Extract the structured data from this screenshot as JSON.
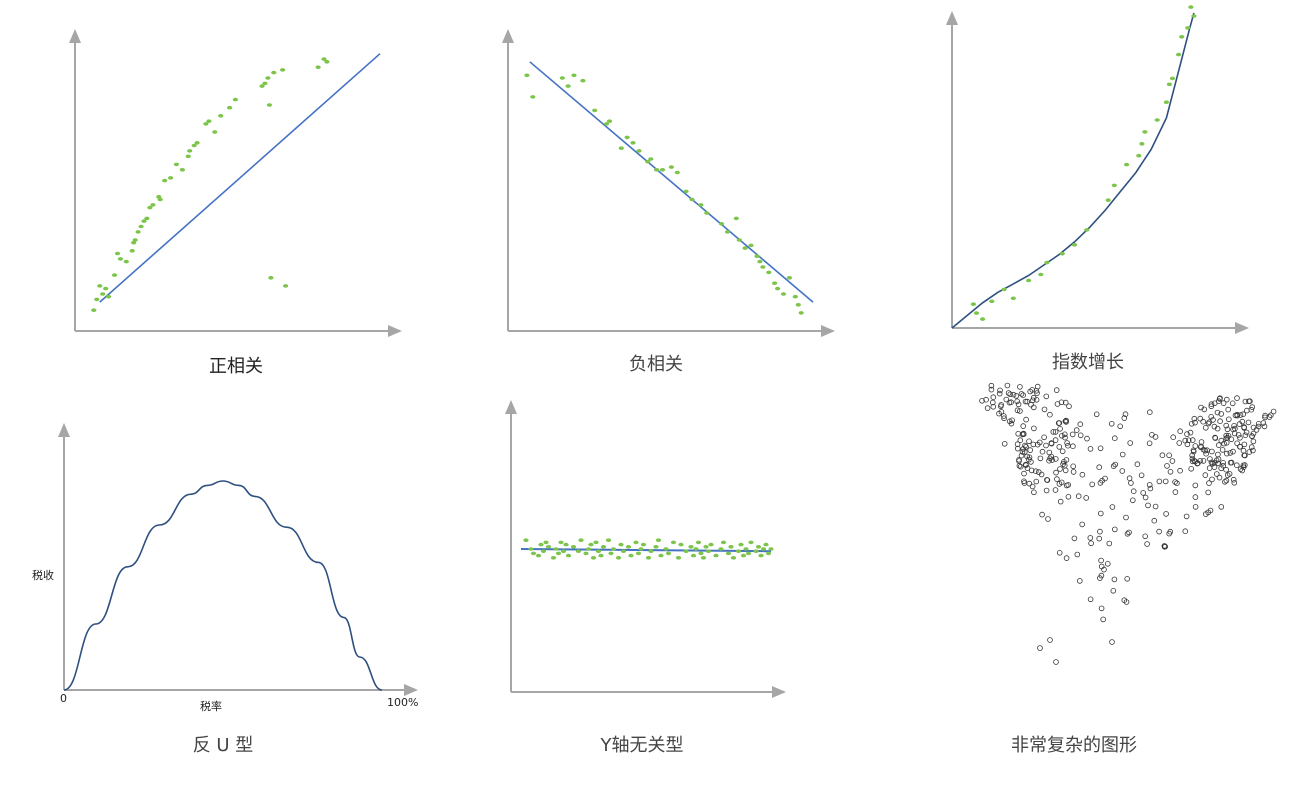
{
  "colors": {
    "axis": "#a6a6a6",
    "fit_line": "#4472c4",
    "curve": "#2e5080",
    "point_green": "#7cc44a",
    "point_open": "#333333"
  },
  "chart_data": [
    {
      "type": "scatter",
      "title": "正相关",
      "fit_line": {
        "x": [
          5,
          100
        ],
        "y": [
          7,
          99
        ]
      },
      "series": [
        {
          "x": [
            3,
            4,
            5,
            6,
            7,
            8,
            10,
            11,
            12,
            14,
            16,
            16.5,
            17,
            18,
            19,
            20,
            21,
            22,
            23,
            25,
            25.5,
            27,
            29,
            31,
            33,
            35,
            35.5,
            37,
            38,
            41,
            42,
            44,
            46,
            49,
            51,
            60,
            61,
            62,
            62.5,
            64,
            67,
            79,
            81,
            82,
            63,
            68
          ],
          "y": [
            4,
            8,
            13,
            10,
            12,
            9,
            17,
            25,
            23,
            22,
            26,
            29,
            30,
            33,
            35,
            37,
            38,
            42,
            43,
            46,
            45,
            52,
            53,
            58,
            56,
            61,
            63,
            65,
            66,
            73,
            74,
            70,
            76,
            79,
            82,
            87,
            88,
            90,
            80,
            92,
            93,
            94,
            97,
            96,
            16,
            13
          ]
        }
      ]
    },
    {
      "type": "scatter",
      "title": "负相关",
      "fit_line": {
        "x": [
          4,
          100
        ],
        "y": [
          96,
          7
        ]
      },
      "series": [
        {
          "x": [
            3,
            5,
            15,
            17,
            19,
            22,
            26,
            30,
            31,
            35,
            37,
            39,
            41,
            44,
            45,
            47,
            49,
            52,
            54,
            57,
            59,
            62,
            64,
            69,
            71,
            74,
            75,
            77,
            79,
            81,
            82,
            83,
            85,
            87,
            88,
            90,
            92,
            94,
            95,
            96
          ],
          "y": [
            91,
            83,
            90,
            87,
            91,
            89,
            78,
            73,
            74,
            64,
            68,
            66,
            63,
            59,
            60,
            56,
            56,
            57,
            55,
            48,
            45,
            43,
            40,
            36,
            33,
            38,
            30,
            27,
            28,
            24,
            22,
            20,
            18,
            14,
            12,
            10,
            16,
            9,
            6,
            3
          ]
        }
      ]
    },
    {
      "type": "scatter",
      "title": "指数增长",
      "fit_line": {
        "x": [
          0,
          5,
          10,
          15,
          20,
          25,
          30,
          35,
          40,
          45,
          50,
          55,
          60,
          65,
          70,
          75,
          77.5,
          79
        ],
        "y": [
          0,
          6,
          12,
          17,
          21,
          25,
          30,
          35,
          41,
          48,
          56,
          65,
          74,
          85,
          100,
          128,
          142,
          150
        ]
      },
      "series": [
        {
          "x": [
            7,
            8,
            10,
            13,
            17,
            20,
            25,
            29,
            31,
            36,
            40,
            44,
            51,
            53,
            57,
            61,
            62,
            63,
            67,
            70,
            71,
            72,
            74,
            75,
            77,
            78,
            79
          ],
          "y": [
            8,
            5,
            3,
            9,
            13,
            10,
            16,
            18,
            22,
            25,
            28,
            33,
            43,
            48,
            55,
            58,
            62,
            66,
            70,
            76,
            82,
            84,
            92,
            98,
            101,
            108,
            105
          ]
        }
      ]
    },
    {
      "type": "line",
      "title": "反 U 型",
      "xlabel": "税率",
      "ylabel": "税收",
      "x_tick_labels": [
        "0",
        "100%"
      ],
      "series": [
        {
          "x": [
            0,
            10,
            20,
            30,
            40,
            45,
            50,
            55,
            60,
            70,
            80,
            88,
            93,
            100
          ],
          "y": [
            0,
            30,
            56,
            75,
            89,
            93,
            95,
            93,
            88,
            74,
            58,
            33,
            15,
            0
          ]
        }
      ]
    },
    {
      "type": "scatter",
      "title": "Y轴无关型",
      "fit_line": {
        "x": [
          0,
          100
        ],
        "y": [
          50.0,
          49.0
        ]
      },
      "series": [
        {
          "x": [
            2,
            4,
            5,
            7,
            8,
            9,
            10,
            11,
            13,
            14,
            15,
            16,
            17,
            18,
            19,
            21,
            23,
            24,
            26,
            27,
            28,
            29,
            30,
            31,
            32,
            33,
            35,
            36,
            37,
            39,
            40,
            41,
            43,
            44,
            46,
            47,
            48,
            49,
            51,
            52,
            54,
            55,
            56,
            58,
            59,
            61,
            63,
            64,
            66,
            68,
            69,
            70,
            71,
            72,
            73,
            74,
            75,
            76,
            78,
            80,
            81,
            83,
            84,
            85,
            87,
            88,
            89,
            90,
            91,
            92,
            94,
            95,
            96,
            97,
            98,
            99,
            100
          ],
          "y": [
            54,
            50,
            48,
            47,
            52,
            49,
            53,
            51,
            46,
            50,
            48,
            53,
            49,
            52,
            47,
            51,
            49,
            54,
            48,
            50,
            52,
            46,
            53,
            49,
            47,
            51,
            54,
            48,
            50,
            46,
            52,
            49,
            51,
            47,
            53,
            48,
            50,
            52,
            46,
            49,
            51,
            54,
            47,
            50,
            48,
            53,
            46,
            52,
            49,
            51,
            47,
            50,
            53,
            48,
            46,
            51,
            49,
            52,
            47,
            50,
            53,
            48,
            51,
            46,
            49,
            52,
            47,
            50,
            48,
            53,
            49,
            51,
            47,
            50,
            52,
            48,
            50
          ]
        }
      ]
    },
    {
      "type": "scatter",
      "title": "非常复杂的图形",
      "marker": "open-circle"
    }
  ]
}
